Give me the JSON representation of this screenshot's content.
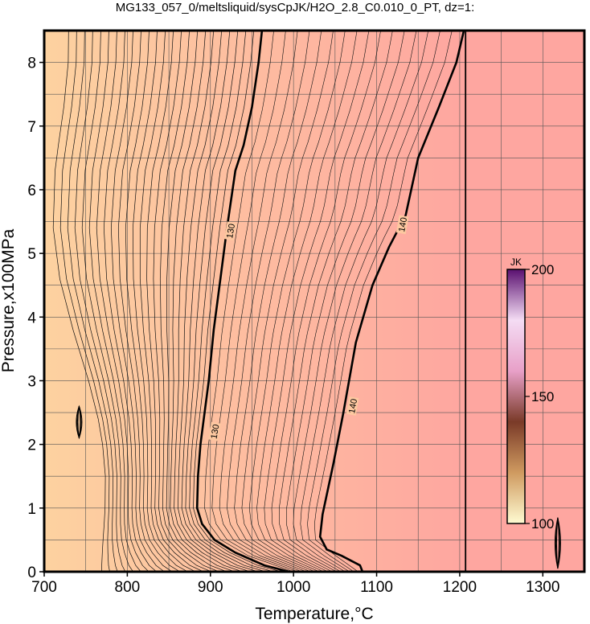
{
  "chart_data": {
    "type": "heatmap",
    "title": "MG133_057_0/meltsliquid/sysCpJK/H2O_2.8_C0.010_0_PT, dz=1:",
    "xlabel": "Temperature,°C",
    "ylabel": "Pressure,x100MPa",
    "xlim": [
      700,
      1350
    ],
    "ylim": [
      0,
      8.5
    ],
    "xticks": [
      700,
      800,
      900,
      1000,
      1100,
      1200,
      1300
    ],
    "yticks": [
      0,
      1,
      2,
      3,
      4,
      5,
      6,
      7,
      8
    ],
    "grid": true,
    "colorbar": {
      "unit": "JK",
      "min": 100,
      "max": 200,
      "ticks": [
        100,
        150,
        200
      ],
      "placement": "right-inside"
    },
    "field_colors": {
      "low_temperature": "#fdd2a0",
      "high_temperature": "#fea6a0"
    },
    "colorbar_colors": [
      "#fffbd2",
      "#cf9a60",
      "#7a3a28",
      "#e8a0c8",
      "#f4dcf4",
      "#5a1070"
    ],
    "major_contours": [
      {
        "label": "130",
        "label_positions": [
          [
            925,
            5.35
          ],
          [
            906,
            2.2
          ]
        ],
        "points": [
          [
            962,
            8.5
          ],
          [
            958,
            8.0
          ],
          [
            950,
            7.3
          ],
          [
            940,
            6.7
          ],
          [
            930,
            6.3
          ],
          [
            920,
            5.4
          ],
          [
            912,
            4.6
          ],
          [
            904,
            3.8
          ],
          [
            898,
            3.0
          ],
          [
            892,
            2.4
          ],
          [
            888,
            2.0
          ],
          [
            885,
            1.5
          ],
          [
            884,
            1.0
          ],
          [
            890,
            0.75
          ],
          [
            905,
            0.5
          ],
          [
            930,
            0.3
          ],
          [
            965,
            0.1
          ],
          [
            995,
            0.0
          ]
        ]
      },
      {
        "label": "140",
        "label_positions": [
          [
            1132,
            5.45
          ],
          [
            1072,
            2.6
          ]
        ],
        "points": [
          [
            1205,
            8.5
          ],
          [
            1196,
            8.0
          ],
          [
            1175,
            7.3
          ],
          [
            1150,
            6.5
          ],
          [
            1135,
            5.6
          ],
          [
            1115,
            5.1
          ],
          [
            1095,
            4.5
          ],
          [
            1075,
            3.6
          ],
          [
            1060,
            2.5
          ],
          [
            1048,
            1.7
          ],
          [
            1035,
            0.9
          ],
          [
            1032,
            0.55
          ],
          [
            1040,
            0.35
          ],
          [
            1058,
            0.25
          ],
          [
            1080,
            0.1
          ],
          [
            1083,
            0.0
          ]
        ]
      },
      {
        "label": "",
        "label_positions": [],
        "points": [
          [
            1207,
            8.5
          ],
          [
            1207,
            0.0
          ]
        ]
      }
    ],
    "minor_contour_count": 24,
    "small_closed_contours": [
      {
        "x": 742,
        "y": [
          2.1,
          2.6
        ]
      },
      {
        "x": 1318,
        "y": [
          0.05,
          0.85
        ]
      }
    ]
  }
}
